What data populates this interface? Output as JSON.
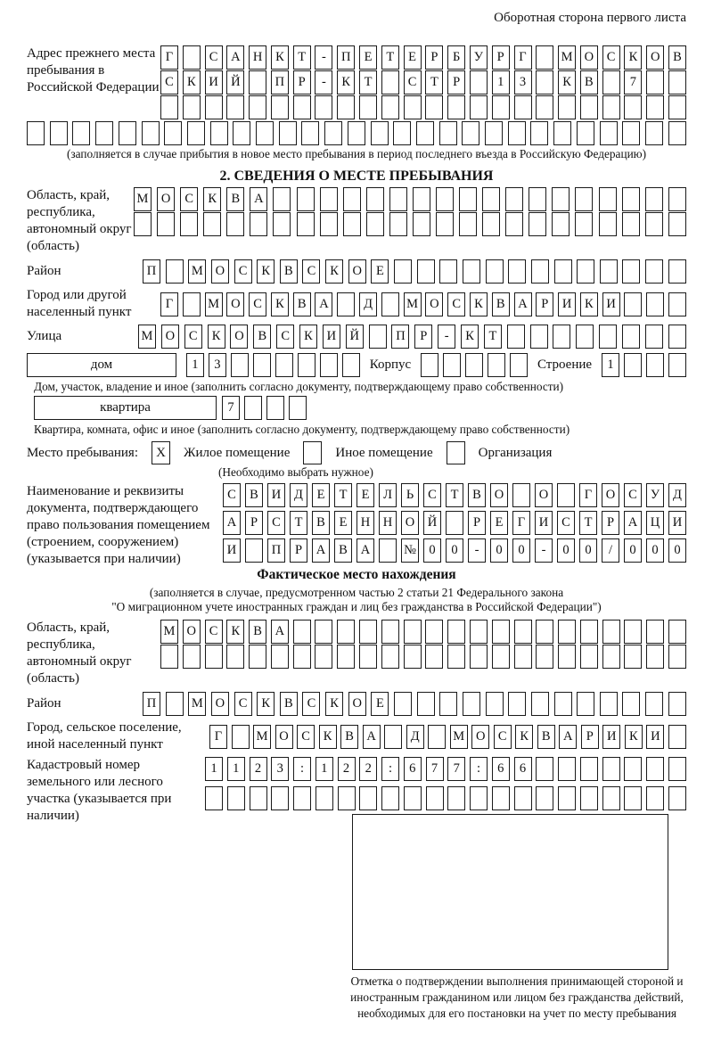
{
  "page": {
    "side_note": "Оборотная сторона первого листа"
  },
  "prev_address": {
    "label": "Адрес прежнего места пребывания в Российской Федерации",
    "line1": "Г САНКТ-ПЕТЕРБУРГ МОСКОВ",
    "line2": "СКИЙ ПР-КТ СТР 13 КВ 7  ",
    "line3": "                        ",
    "line4": "                             ",
    "note": "(заполняется в случае прибытия в новое место пребывания в период последнего въезда в Российскую Федерацию)"
  },
  "section2": {
    "heading": "2. СВЕДЕНИЯ О МЕСТЕ ПРЕБЫВАНИЯ",
    "oblast": {
      "label": "Область, край, республика, автономный округ (область)",
      "line1": "МОСКВА                  ",
      "line2": "                        "
    },
    "raion": {
      "label": "Район",
      "line1": "П МОСКВСКОЕ             "
    },
    "gorod": {
      "label": "Город или другой населенный пункт",
      "line1": "Г МОСКВА Д МОСКВАРИКИ   "
    },
    "ulitsa": {
      "label": "Улица",
      "line1": "МОСКОВСКИЙ ПР-КТ        "
    },
    "dom": {
      "box_label": "дом",
      "cells": "13      ",
      "korpus_label": "Корпус",
      "korpus_cells": "     ",
      "stroenie_label": "Строение",
      "stroenie_cells": "1   ",
      "note": "Дом, участок, владение и иное (заполнить согласно документу, подтверждающему право собственности)"
    },
    "kvartira": {
      "box_label": "квартира",
      "cells": "7   ",
      "note": "Квартира, комната, офис и иное (заполнить согласно документу, подтверждающему право собственности)"
    },
    "mesto": {
      "label": "Место пребывания:",
      "zhiloe_mark": "X",
      "zhiloe_label": "Жилое помещение",
      "inoe_mark": "",
      "inoe_label": "Иное помещение",
      "org_mark": "",
      "org_label": "Организация",
      "note": "(Необходимо выбрать нужное)"
    },
    "document": {
      "label": "Наименование и реквизиты документа, подтверждающего право пользования помещением (строением, сооружением) (указывается при наличии)",
      "line1": "СВИДЕТЕЛЬСТВО О ГОСУД",
      "line2": "АРСТВЕННОЙ РЕГИСТРАЦИ",
      "line3": "И ПРАВА №00-00-00/000"
    }
  },
  "fact": {
    "heading": "Фактическое место нахождения",
    "note1": "(заполняется в случае, предусмотренном частью 2 статьи 21 Федерального закона",
    "note2": "\"О миграционном учете иностранных граждан и лиц без гражданства в Российской Федерации\")",
    "oblast": {
      "label": "Область, край, республика, автономный округ (область)",
      "line1": "МОСКВА                  ",
      "line2": "                        "
    },
    "raion": {
      "label": "Район",
      "line1": "П МОСКВСКОЕ             "
    },
    "gorod": {
      "label": "Город, сельское поселение, иной населенный пункт",
      "line1": "Г МОСКВА Д МОСКВАРИКИ "
    },
    "kadastr": {
      "label": "Кадастровый номер земельного или лесного участка (указывается при наличии)",
      "line1": "1123:122:677:66       ",
      "line2": "                      "
    },
    "stamp_caption": "Отметка о подтверждении выполнения принимающей стороной и иностранным гражданином или лицом без гражданства действий, необходимых для его постановки на учет по месту пребывания"
  }
}
